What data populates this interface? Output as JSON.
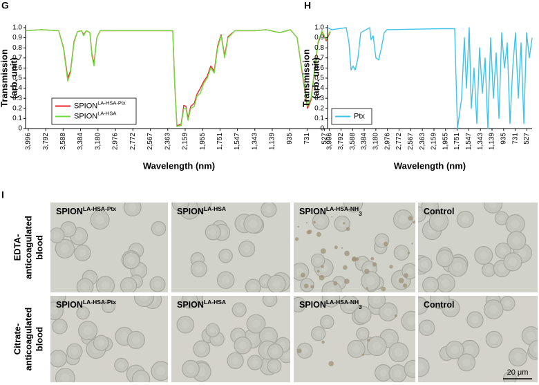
{
  "chart_data": [
    {
      "type": "line",
      "panel": "G",
      "ylabel": [
        "Transmission",
        "(arb. unit)"
      ],
      "xlabel": "Wavelength (nm)",
      "xlim": [
        4028,
        435
      ],
      "ylim": [
        0,
        1
      ],
      "xticks": [
        {
          "value": 3996,
          "label": "3,996"
        },
        {
          "value": 3792,
          "label": "3,792"
        },
        {
          "value": 3588,
          "label": "3,588"
        },
        {
          "value": 3384,
          "label": "3,384"
        },
        {
          "value": 3180,
          "label": "3,180"
        },
        {
          "value": 2976,
          "label": "2,976"
        },
        {
          "value": 2772,
          "label": "2,772"
        },
        {
          "value": 2567,
          "label": "2,567"
        },
        {
          "value": 2363,
          "label": "2,363"
        },
        {
          "value": 2159,
          "label": "2,159"
        },
        {
          "value": 1955,
          "label": "1,955"
        },
        {
          "value": 1751,
          "label": "1,751"
        },
        {
          "value": 1547,
          "label": "1,547"
        },
        {
          "value": 1343,
          "label": "1,343"
        },
        {
          "value": 1139,
          "label": "1,139"
        },
        935,
        731,
        527
      ],
      "yticks": [
        0,
        0.1,
        0.2,
        0.3,
        0.4,
        0.5,
        0.6,
        0.7,
        0.8,
        0.9,
        {
          "value": 1,
          "label": "1.0"
        }
      ],
      "legend": "lower-left",
      "x": [
        4028,
        3842,
        3640,
        3583,
        3534,
        3502,
        3461,
        3421,
        3372,
        3348,
        3316,
        3275,
        3251,
        3227,
        3194,
        3154,
        2709,
        2304,
        2280,
        2256,
        2207,
        2175,
        2150,
        2126,
        2094,
        2053,
        2021,
        1981,
        1940,
        1900,
        1859,
        1819,
        1778,
        1738,
        1697,
        1657,
        1576,
        1333,
        1212,
        1050,
        928,
        848,
        767,
        726,
        686,
        605,
        556,
        508,
        459
      ],
      "series": [
        {
          "name": "SPION",
          "name_superscript": "LA-HSA-Ptx",
          "color": "#e8262b",
          "values": [
            0.97,
            0.98,
            0.97,
            0.8,
            0.5,
            0.57,
            0.86,
            0.96,
            0.97,
            0.93,
            0.97,
            0.95,
            0.74,
            0.64,
            0.9,
            0.97,
            0.97,
            0.97,
            0.42,
            0.03,
            0.04,
            0.23,
            0.22,
            0.1,
            0.22,
            0.25,
            0.34,
            0.4,
            0.47,
            0.52,
            0.62,
            0.57,
            0.82,
            0.93,
            0.72,
            0.91,
            0.97,
            0.97,
            0.98,
            0.95,
            0.98,
            0.9,
            0.43,
            0.2,
            0.28,
            0.84,
            0.96,
            0.87,
            0.96
          ]
        },
        {
          "name": "SPION",
          "name_superscript": "LA-HSA",
          "color": "#6fdc3c",
          "values": [
            0.97,
            0.98,
            0.97,
            0.79,
            0.47,
            0.55,
            0.85,
            0.96,
            0.97,
            0.92,
            0.97,
            0.95,
            0.72,
            0.62,
            0.9,
            0.97,
            0.97,
            0.97,
            0.4,
            0.02,
            0.03,
            0.2,
            0.2,
            0.08,
            0.2,
            0.22,
            0.32,
            0.35,
            0.45,
            0.5,
            0.6,
            0.55,
            0.8,
            0.92,
            0.7,
            0.9,
            0.97,
            0.97,
            0.98,
            0.95,
            0.98,
            0.9,
            0.45,
            0.22,
            0.3,
            0.85,
            0.97,
            0.88,
            0.97
          ]
        }
      ]
    },
    {
      "type": "line",
      "panel": "H",
      "ylabel": [
        "Transmission",
        "(arb. unit)"
      ],
      "xlabel": "Wavelength (nm)",
      "xlim": [
        4028,
        435
      ],
      "ylim": [
        0,
        1
      ],
      "xticks": [
        {
          "value": 3996,
          "label": "3,996"
        },
        {
          "value": 3792,
          "label": "3,792"
        },
        {
          "value": 3588,
          "label": "3,588"
        },
        {
          "value": 3384,
          "label": "3,384"
        },
        {
          "value": 3180,
          "label": "3,180"
        },
        {
          "value": 2976,
          "label": "2,976"
        },
        {
          "value": 2772,
          "label": "2,772"
        },
        {
          "value": 2567,
          "label": "2,567"
        },
        {
          "value": 2363,
          "label": "2,363"
        },
        {
          "value": 2159,
          "label": "2,159"
        },
        {
          "value": 1955,
          "label": "1,955"
        },
        {
          "value": 1751,
          "label": "1,751"
        },
        {
          "value": 1547,
          "label": "1,547"
        },
        {
          "value": 1343,
          "label": "1,343"
        },
        {
          "value": 1139,
          "label": "1,139"
        },
        935,
        731,
        527
      ],
      "yticks": [
        0,
        0.1,
        0.2,
        0.3,
        0.4,
        0.5,
        0.6,
        0.7,
        0.8,
        0.9,
        {
          "value": 1,
          "label": "1.0"
        }
      ],
      "legend": "lower-left",
      "x": [
        4028,
        3955,
        3700,
        3652,
        3615,
        3579,
        3542,
        3494,
        3445,
        3287,
        3263,
        3227,
        3178,
        3130,
        3081,
        3033,
        2984,
        2013,
        1794,
        1746,
        1673,
        1625,
        1588,
        1540,
        1503,
        1455,
        1406,
        1358,
        1309,
        1260,
        1212,
        1163,
        1115,
        1066,
        1017,
        969,
        920,
        872,
        823,
        775,
        726,
        678,
        629,
        580,
        532,
        483,
        435
      ],
      "series": [
        {
          "name": "Ptx",
          "color": "#3fc3ea",
          "values": [
            1.0,
            0.98,
            1.0,
            0.85,
            0.58,
            0.62,
            0.58,
            0.7,
            0.95,
            1.0,
            0.88,
            0.92,
            0.7,
            0.68,
            0.8,
            0.95,
            0.98,
            0.99,
            0.99,
            0.0,
            0.3,
            0.9,
            0.4,
            1.0,
            0.2,
            0.6,
            0.05,
            0.8,
            0.35,
            0.7,
            0.0,
            0.9,
            0.3,
            0.75,
            0.1,
            0.95,
            0.6,
            0.85,
            0.05,
            0.6,
            0.95,
            0.3,
            0.85,
            0.05,
            0.95,
            0.7,
            0.9
          ]
        }
      ]
    }
  ],
  "micrographs": {
    "panel": "I",
    "columns": [
      {
        "name": "SPION",
        "superscript": "LA-HSA-Ptx"
      },
      {
        "name": "SPION",
        "superscript": "LA-HSA"
      },
      {
        "name": "SPION",
        "superscript": "LA-HSA-NH",
        "subscript": "3"
      },
      {
        "name": "Control"
      }
    ],
    "rows": [
      {
        "label": [
          "EDTA-",
          "anticoagulated",
          "blood"
        ]
      },
      {
        "label": [
          "Citrate-",
          "anticoagulated",
          "blood"
        ]
      }
    ],
    "scale_bar": "20 μm"
  }
}
